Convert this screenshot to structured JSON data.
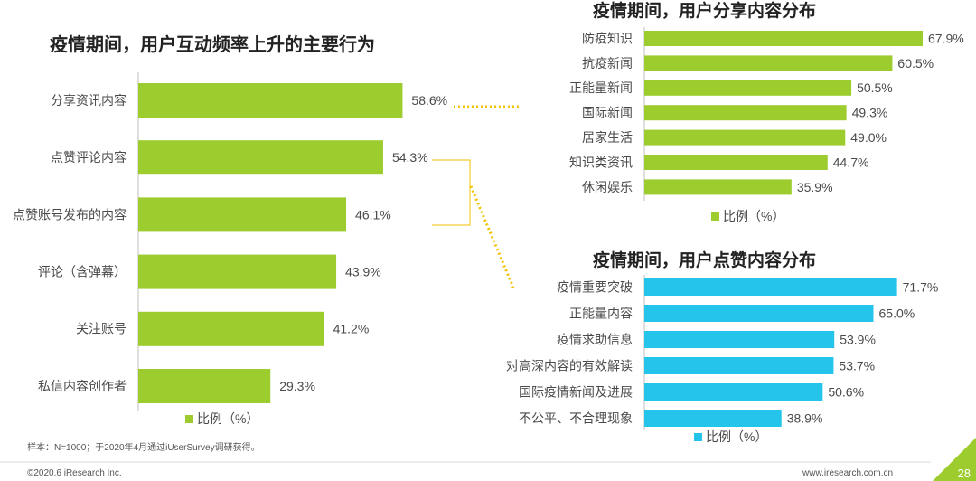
{
  "chart_data": [
    {
      "type": "bar",
      "orientation": "horizontal",
      "title": "疫情期间，用户互动频率上升的主要行为",
      "categories": [
        "分享资讯内容",
        "点赞评论内容",
        "点赞账号发布的内容",
        "评论（含弹幕）",
        "关注账号",
        "私信内容创作者"
      ],
      "values": [
        58.6,
        54.3,
        46.1,
        43.9,
        41.2,
        29.3
      ],
      "value_labels": [
        "58.6%",
        "54.3%",
        "46.1%",
        "43.9%",
        "41.2%",
        "29.3%"
      ],
      "legend": "比例（%）",
      "color": "#9ccc2e",
      "xlim": [
        0,
        100
      ]
    },
    {
      "type": "bar",
      "orientation": "horizontal",
      "title": "疫情期间，用户分享内容分布",
      "categories": [
        "防疫知识",
        "抗疫新闻",
        "正能量新闻",
        "国际新闻",
        "居家生活",
        "知识类资讯",
        "休闲娱乐"
      ],
      "values": [
        67.9,
        60.5,
        50.5,
        49.3,
        49.0,
        44.7,
        35.9
      ],
      "value_labels": [
        "67.9%",
        "60.5%",
        "50.5%",
        "49.3%",
        "49.0%",
        "44.7%",
        "35.9%"
      ],
      "legend": "比例（%）",
      "color": "#9ccc2e",
      "xlim": [
        0,
        100
      ]
    },
    {
      "type": "bar",
      "orientation": "horizontal",
      "title": "疫情期间，用户点赞内容分布",
      "categories": [
        "疫情重要突破",
        "正能量内容",
        "疫情求助信息",
        "对高深内容的有效解读",
        "国际疫情新闻及进展",
        "不公平、不合理现象"
      ],
      "values": [
        71.7,
        65.0,
        53.9,
        53.7,
        50.6,
        38.9
      ],
      "value_labels": [
        "71.7%",
        "65.0%",
        "53.9%",
        "53.7%",
        "50.6%",
        "38.9%"
      ],
      "legend": "比例（%）",
      "color": "#25c4ea",
      "xlim": [
        0,
        100
      ]
    }
  ],
  "footer": {
    "sample_note": "样本：N=1000；于2020年4月通过iUserSurvey调研获得。",
    "copyright": "©2020.6 iResearch Inc.",
    "website": "www.iresearch.com.cn",
    "page_number": "28"
  },
  "colors": {
    "axis": "#bfbfbf",
    "connector": "#f2c200",
    "corner_accent": "#9ccc2e"
  }
}
